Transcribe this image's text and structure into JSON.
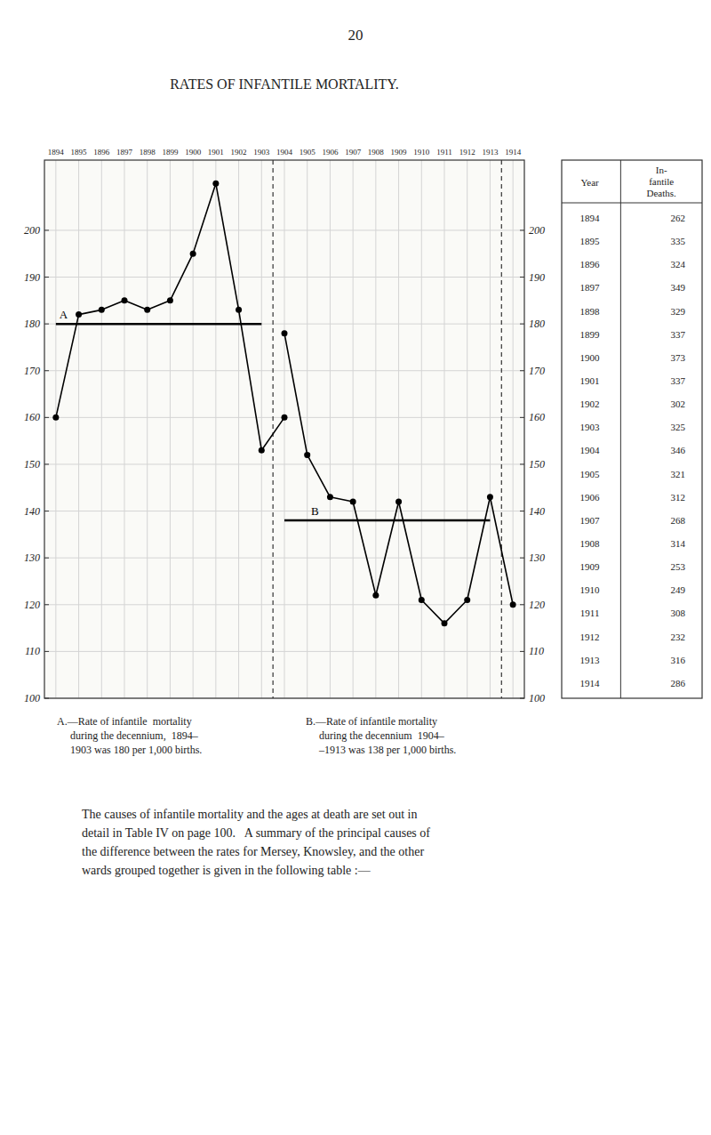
{
  "chart_data": [
    {
      "type": "line",
      "title": "RATES OF INFANTILE MORTALITY.",
      "x": [
        1894,
        1895,
        1896,
        1897,
        1898,
        1899,
        1900,
        1901,
        1902,
        1903,
        1904,
        1905,
        1906,
        1907,
        1908,
        1909,
        1910,
        1911,
        1912,
        1913,
        1914
      ],
      "series": [
        {
          "color": "#000000",
          "values": [
            160,
            182,
            183,
            185,
            183,
            185,
            195,
            210,
            183,
            153,
            160,
            null,
            null,
            null,
            null,
            null,
            null,
            null,
            null,
            null,
            null
          ]
        },
        {
          "color": "#000000",
          "values": [
            null,
            null,
            null,
            null,
            null,
            null,
            null,
            null,
            null,
            null,
            178,
            152,
            143,
            142,
            122,
            142,
            121,
            116,
            121,
            143,
            120
          ]
        }
      ],
      "reference_lines": [
        {
          "label": "A",
          "value": 180,
          "x": [
            1894,
            1903
          ]
        },
        {
          "label": "B",
          "value": 138,
          "x": [
            1904,
            1913
          ]
        }
      ],
      "dividers": [
        1903.5,
        1913.5
      ],
      "xlim": [
        1893.5,
        1914.5
      ],
      "xticks": [
        1894,
        1895,
        1896,
        1897,
        1898,
        1899,
        1900,
        1901,
        1902,
        1903,
        1904,
        1905,
        1906,
        1907,
        1908,
        1909,
        1910,
        1911,
        1912,
        1913,
        1914
      ],
      "ylim": [
        100,
        215
      ],
      "yticks": [
        100,
        110,
        120,
        130,
        140,
        150,
        160,
        170,
        180,
        190,
        200
      ],
      "grid": true,
      "marker": "circle"
    },
    {
      "type": "table",
      "columns": [
        "Year",
        "In-\nfantile\nDeaths."
      ],
      "categories": [
        1894,
        1895,
        1896,
        1897,
        1898,
        1899,
        1900,
        1901,
        1902,
        1903,
        1904,
        1905,
        1906,
        1907,
        1908,
        1909,
        1910,
        1911,
        1912,
        1913,
        1914
      ],
      "values": [
        262,
        335,
        324,
        349,
        329,
        337,
        373,
        337,
        302,
        325,
        346,
        321,
        312,
        268,
        314,
        253,
        249,
        308,
        232,
        316,
        286
      ]
    }
  ],
  "page_number": "20",
  "captions": [
    "A.—Rate of infantile  mortality\n     during the decennium,  1894–\n     1903 was 180 per 1,000 births.",
    "B.—Rate of infantile mortality\n     during the decennium  1904–\n     –1913 was 138 per 1,000 births."
  ],
  "body_text": "The causes of infantile mortality and the ages at death are set out in\ndetail in Table IV on page 100.   A summary of the principal causes of\nthe difference between the rates for Mersey, Knowsley, and the other\nwards grouped together is given in the following table :—"
}
